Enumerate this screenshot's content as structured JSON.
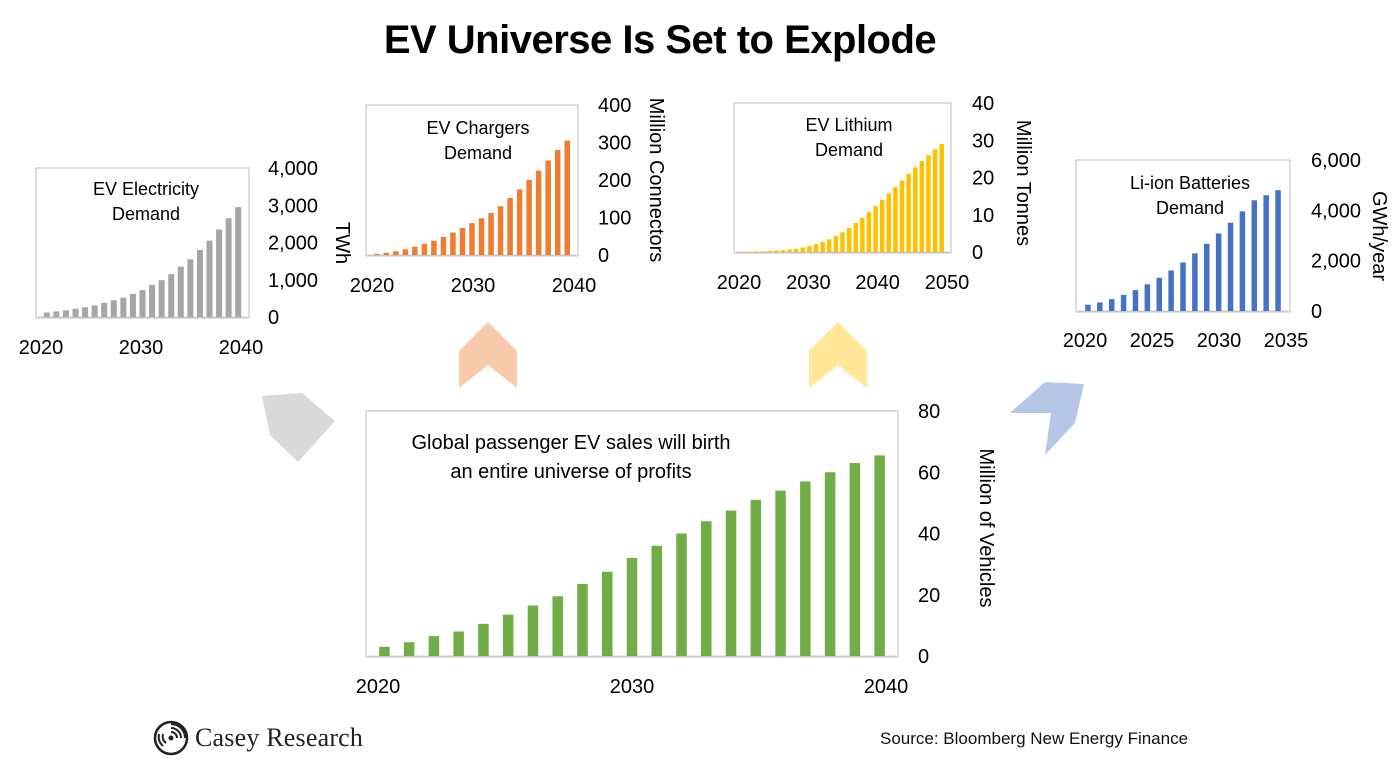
{
  "title": "EV Universe Is Set to Explode",
  "source": "Source: Bloomberg New Energy Finance",
  "logo": {
    "name": "Casey Research",
    "icon": "spiral-logo-icon"
  },
  "chart_data": [
    {
      "id": "electricity",
      "type": "bar",
      "title_lines": [
        "EV Electricity",
        "Demand"
      ],
      "ylabel": "TWh",
      "ylim": [
        0,
        4000
      ],
      "yticks": [
        0,
        1000,
        2000,
        3000,
        4000
      ],
      "ytick_labels": [
        "0",
        "1,000",
        "2,000",
        "3,000",
        "4,000"
      ],
      "xtick_labels": [
        "2020",
        "2030",
        "2040"
      ],
      "categories": [
        "2020",
        "2021",
        "2022",
        "2023",
        "2024",
        "2025",
        "2026",
        "2027",
        "2028",
        "2029",
        "2030",
        "2031",
        "2032",
        "2033",
        "2034",
        "2035",
        "2036",
        "2037",
        "2038",
        "2039",
        "2040"
      ],
      "values": [
        120,
        150,
        180,
        220,
        260,
        310,
        380,
        450,
        520,
        620,
        720,
        860,
        990,
        1150,
        1350,
        1550,
        1800,
        2050,
        2350,
        2650,
        2950
      ],
      "color": "#a6a6a6"
    },
    {
      "id": "chargers",
      "type": "bar",
      "title_lines": [
        "EV Chargers",
        "Demand"
      ],
      "ylabel": "Million Connectors",
      "ylim": [
        0,
        400
      ],
      "yticks": [
        0,
        100,
        200,
        300,
        400
      ],
      "ytick_labels": [
        "0",
        "100",
        "200",
        "300",
        "400"
      ],
      "xtick_labels": [
        "2020",
        "2030",
        "2040"
      ],
      "categories": [
        "2020",
        "2021",
        "2022",
        "2023",
        "2024",
        "2025",
        "2026",
        "2027",
        "2028",
        "2029",
        "2030",
        "2031",
        "2032",
        "2033",
        "2034",
        "2035",
        "2036",
        "2037",
        "2038",
        "2039",
        "2040"
      ],
      "values": [
        3,
        6,
        10,
        15,
        22,
        30,
        38,
        48,
        60,
        72,
        85,
        98,
        112,
        130,
        152,
        175,
        200,
        225,
        252,
        280,
        305
      ],
      "color": "#ed7d31"
    },
    {
      "id": "lithium",
      "type": "bar",
      "title_lines": [
        "EV Lithium",
        "Demand"
      ],
      "ylabel": "Million Tonnes",
      "ylim": [
        0,
        40
      ],
      "yticks": [
        0,
        10,
        20,
        30,
        40
      ],
      "ytick_labels": [
        "0",
        "10",
        "20",
        "30",
        "40"
      ],
      "xtick_labels": [
        "2020",
        "2030",
        "2040",
        "2050"
      ],
      "categories": [
        "2020",
        "2021",
        "2022",
        "2023",
        "2024",
        "2025",
        "2026",
        "2027",
        "2028",
        "2029",
        "2030",
        "2031",
        "2032",
        "2033",
        "2034",
        "2035",
        "2036",
        "2037",
        "2038",
        "2039",
        "2040",
        "2041",
        "2042",
        "2043",
        "2044",
        "2045",
        "2046",
        "2047",
        "2048",
        "2049",
        "2050"
      ],
      "values": [
        0.05,
        0.1,
        0.15,
        0.2,
        0.3,
        0.4,
        0.5,
        0.7,
        0.9,
        1.2,
        1.6,
        2.1,
        2.7,
        3.4,
        4.3,
        5.3,
        6.5,
        7.8,
        9.2,
        10.7,
        12.3,
        14.0,
        15.7,
        17.4,
        19.2,
        21.0,
        22.7,
        24.4,
        26.0,
        27.6,
        29.0
      ],
      "color": "#ffc000"
    },
    {
      "id": "batteries",
      "type": "bar",
      "title_lines": [
        "Li-ion Batteries",
        "Demand"
      ],
      "ylabel": "GWh/year",
      "ylim": [
        0,
        6000
      ],
      "yticks": [
        0,
        2000,
        4000,
        6000
      ],
      "ytick_labels": [
        "0",
        "2,000",
        "4,000",
        "6,000"
      ],
      "xtick_labels": [
        "2020",
        "2025",
        "2030",
        "2035"
      ],
      "categories": [
        "2019",
        "2020",
        "2021",
        "2022",
        "2023",
        "2024",
        "2025",
        "2026",
        "2027",
        "2028",
        "2029",
        "2030",
        "2031",
        "2032",
        "2033",
        "2034",
        "2035"
      ],
      "values": [
        250,
        340,
        470,
        640,
        830,
        1060,
        1320,
        1610,
        1930,
        2290,
        2670,
        3080,
        3510,
        3960,
        4400,
        4600,
        4800
      ],
      "color": "#4472c4"
    },
    {
      "id": "ev-sales",
      "type": "bar",
      "title_lines": [
        "Global passenger EV sales will birth",
        "an entire universe of profits"
      ],
      "ylabel": "Million of Vehicles",
      "ylim": [
        0,
        80
      ],
      "yticks": [
        0,
        20,
        40,
        60,
        80
      ],
      "ytick_labels": [
        "0",
        "20",
        "40",
        "60",
        "80"
      ],
      "xtick_labels": [
        "2020",
        "2030",
        "2040"
      ],
      "categories": [
        "2020",
        "2021",
        "2022",
        "2023",
        "2024",
        "2025",
        "2026",
        "2027",
        "2028",
        "2029",
        "2030",
        "2031",
        "2032",
        "2033",
        "2034",
        "2035",
        "2036",
        "2037",
        "2038",
        "2039",
        "2040"
      ],
      "values": [
        3,
        4.5,
        6.5,
        8,
        10.5,
        13.5,
        16.5,
        19.5,
        23.5,
        27.5,
        32,
        36,
        40,
        44,
        47.5,
        51,
        54,
        57,
        60,
        63,
        65.5
      ],
      "color": "#70ad47"
    }
  ],
  "arrow_colors": {
    "electricity": "#d9d9d9",
    "chargers": "#f8cbad",
    "lithium": "#ffe699",
    "batteries": "#b4c7e7"
  }
}
